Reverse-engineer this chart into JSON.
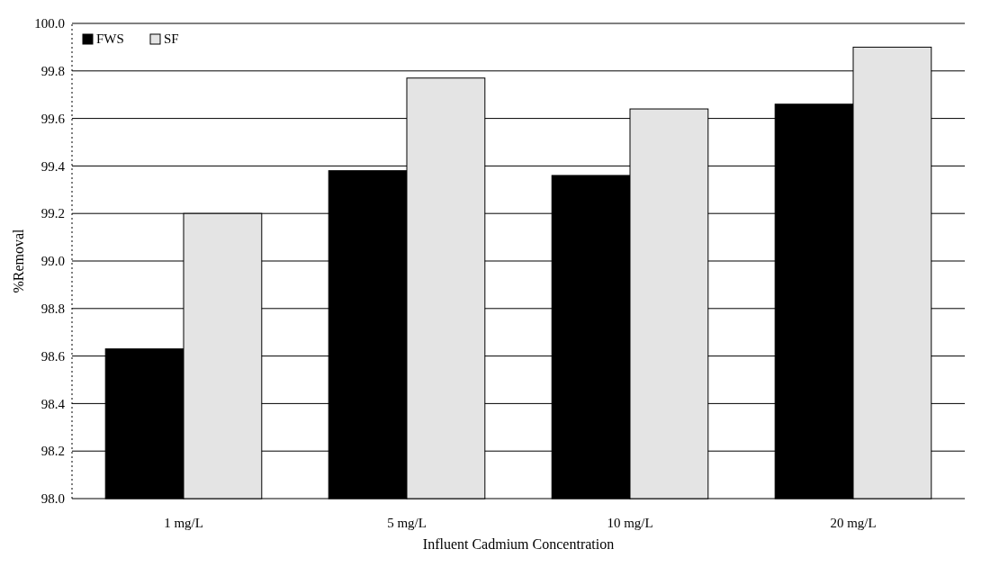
{
  "chart_data": {
    "type": "bar",
    "xlabel": "Influent Cadmium Concentration",
    "ylabel": "%Removal",
    "categories": [
      "1 mg/L",
      "5 mg/L",
      "10 mg/L",
      "20 mg/L"
    ],
    "series": [
      {
        "name": "FWS",
        "color": "#000000",
        "values": [
          98.63,
          99.38,
          99.36,
          99.66
        ]
      },
      {
        "name": "SF",
        "color": "#e4e4e4",
        "values": [
          99.2,
          99.77,
          99.64,
          99.9
        ]
      }
    ],
    "ylim": [
      98.0,
      100.0
    ],
    "yticks": [
      {
        "value": 98.0,
        "label": "98.0"
      },
      {
        "value": 98.2,
        "label": "98.2"
      },
      {
        "value": 98.4,
        "label": "98.4"
      },
      {
        "value": 98.6,
        "label": "98.6"
      },
      {
        "value": 98.8,
        "label": "98.8"
      },
      {
        "value": 99.0,
        "label": "99.0"
      },
      {
        "value": 99.2,
        "label": "99.2"
      },
      {
        "value": 99.4,
        "label": "99.4"
      },
      {
        "value": 99.6,
        "label": "99.6"
      },
      {
        "value": 99.8,
        "label": "99.8"
      },
      {
        "value": 100.0,
        "label": "100.0"
      }
    ],
    "grid": "y",
    "legend": "top left"
  }
}
